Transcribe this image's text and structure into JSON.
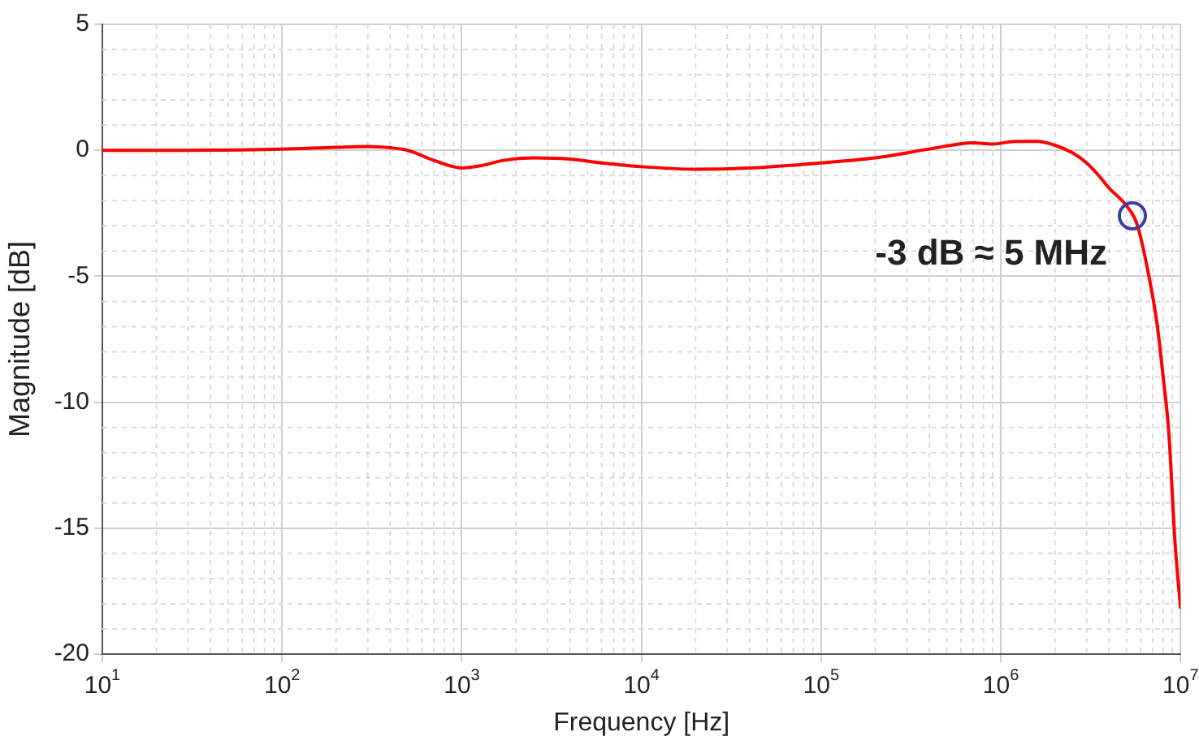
{
  "chart_data": {
    "type": "line",
    "xlabel": "Frequency [Hz]",
    "ylabel": "Magnitude [dB]",
    "log": "x",
    "xlim": [
      10,
      10000000
    ],
    "ylim": [
      -20,
      5
    ],
    "xticks": [
      {
        "value": 10,
        "label": "10$^{1}$"
      },
      {
        "value": 100,
        "label": "10$^{2}$"
      },
      {
        "value": 1000,
        "label": "10$^{3}$"
      },
      {
        "value": 10000,
        "label": "10$^{4}$"
      },
      {
        "value": 100000,
        "label": "10$^{5}$"
      },
      {
        "value": 1000000,
        "label": "10$^{6}$"
      },
      {
        "value": 10000000,
        "label": "10$^{7}$"
      }
    ],
    "yticks": [
      -20,
      -15,
      -10,
      -5,
      0,
      5
    ],
    "grid": true,
    "legend": false,
    "marker": "none",
    "line_style": "solid",
    "annotations": [
      "-3 dB ≈ 5 MHz"
    ],
    "series": [
      {
        "color": "#ff0000",
        "x": [
          10,
          30,
          100,
          200,
          300,
          400,
          500,
          700,
          1000,
          1300,
          1700,
          2500,
          4000,
          6000,
          10000,
          20000,
          40000,
          100000,
          200000,
          400000,
          700000,
          900000,
          1200000,
          1600000,
          2000000,
          2500000,
          3000000,
          3500000,
          4000000,
          5000000,
          5700000,
          6500000,
          7400000,
          8000000,
          8600000,
          9300000,
          10000000
        ],
        "values": [
          0,
          0,
          0.05,
          0.12,
          0.15,
          0.1,
          0,
          -0.4,
          -0.7,
          -0.6,
          -0.4,
          -0.3,
          -0.35,
          -0.5,
          -0.65,
          -0.75,
          -0.7,
          -0.5,
          -0.3,
          0.05,
          0.3,
          0.25,
          0.35,
          0.35,
          0.2,
          -0.1,
          -0.5,
          -1,
          -1.5,
          -2.2,
          -2.9,
          -4.6,
          -6.9,
          -9,
          -11.2,
          -15.5,
          -18.2
        ]
      }
    ]
  }
}
